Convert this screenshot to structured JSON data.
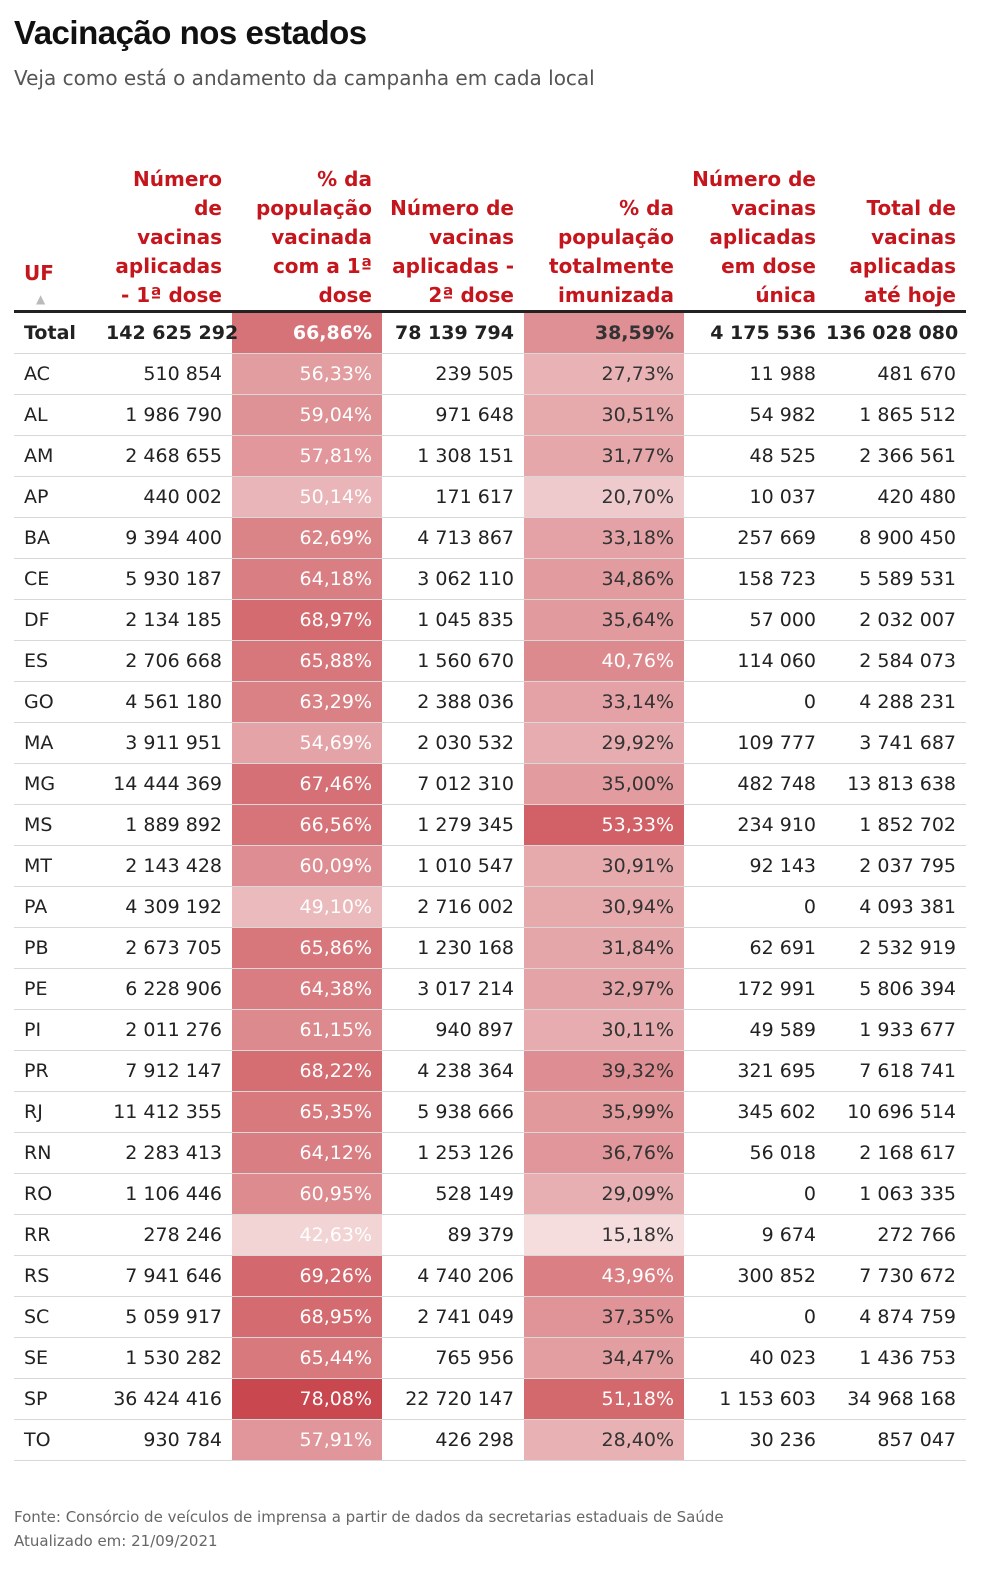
{
  "title": "Vacinação nos estados",
  "subtitle": "Veja como está o andamento da campanha em cada local",
  "colors": {
    "header_text": "#c4161c",
    "heat_base": "#c8434a"
  },
  "chart_data": {
    "type": "table",
    "columns": [
      "UF",
      "Número de vacinas aplicadas - 1ª dose",
      "% da população vacinada com a 1ª dose",
      "Número de vacinas aplicadas - 2ª dose",
      "% da população totalmente imunizada",
      "Número de vacinas aplicadas em dose única",
      "Total de vacinas aplicadas até hoje"
    ],
    "sort_indicator": "▲",
    "rows": [
      [
        "Total",
        "142 625 292",
        "66,86%",
        "78 139 794",
        "38,59%",
        "4 175 536",
        "136 028 080"
      ],
      [
        "AC",
        "510 854",
        "56,33%",
        "239 505",
        "27,73%",
        "11 988",
        "481 670"
      ],
      [
        "AL",
        "1 986 790",
        "59,04%",
        "971 648",
        "30,51%",
        "54 982",
        "1 865 512"
      ],
      [
        "AM",
        "2 468 655",
        "57,81%",
        "1 308 151",
        "31,77%",
        "48 525",
        "2 366 561"
      ],
      [
        "AP",
        "440 002",
        "50,14%",
        "171 617",
        "20,70%",
        "10 037",
        "420 480"
      ],
      [
        "BA",
        "9 394 400",
        "62,69%",
        "4 713 867",
        "33,18%",
        "257 669",
        "8 900 450"
      ],
      [
        "CE",
        "5 930 187",
        "64,18%",
        "3 062 110",
        "34,86%",
        "158 723",
        "5 589 531"
      ],
      [
        "DF",
        "2 134 185",
        "68,97%",
        "1 045 835",
        "35,64%",
        "57 000",
        "2 032 007"
      ],
      [
        "ES",
        "2 706 668",
        "65,88%",
        "1 560 670",
        "40,76%",
        "114 060",
        "2 584 073"
      ],
      [
        "GO",
        "4 561 180",
        "63,29%",
        "2 388 036",
        "33,14%",
        "0",
        "4 288 231"
      ],
      [
        "MA",
        "3 911 951",
        "54,69%",
        "2 030 532",
        "29,92%",
        "109 777",
        "3 741 687"
      ],
      [
        "MG",
        "14 444 369",
        "67,46%",
        "7 012 310",
        "35,00%",
        "482 748",
        "13 813 638"
      ],
      [
        "MS",
        "1 889 892",
        "66,56%",
        "1 279 345",
        "53,33%",
        "234 910",
        "1 852 702"
      ],
      [
        "MT",
        "2 143 428",
        "60,09%",
        "1 010 547",
        "30,91%",
        "92 143",
        "2 037 795"
      ],
      [
        "PA",
        "4 309 192",
        "49,10%",
        "2 716 002",
        "30,94%",
        "0",
        "4 093 381"
      ],
      [
        "PB",
        "2 673 705",
        "65,86%",
        "1 230 168",
        "31,84%",
        "62 691",
        "2 532 919"
      ],
      [
        "PE",
        "6 228 906",
        "64,38%",
        "3 017 214",
        "32,97%",
        "172 991",
        "5 806 394"
      ],
      [
        "PI",
        "2 011 276",
        "61,15%",
        "940 897",
        "30,11%",
        "49 589",
        "1 933 677"
      ],
      [
        "PR",
        "7 912 147",
        "68,22%",
        "4 238 364",
        "39,32%",
        "321 695",
        "7 618 741"
      ],
      [
        "RJ",
        "11 412 355",
        "65,35%",
        "5 938 666",
        "35,99%",
        "345 602",
        "10 696 514"
      ],
      [
        "RN",
        "2 283 413",
        "64,12%",
        "1 253 126",
        "36,76%",
        "56 018",
        "2 168 617"
      ],
      [
        "RO",
        "1 106 446",
        "60,95%",
        "528 149",
        "29,09%",
        "0",
        "1 063 335"
      ],
      [
        "RR",
        "278 246",
        "42,63%",
        "89 379",
        "15,18%",
        "9 674",
        "272 766"
      ],
      [
        "RS",
        "7 941 646",
        "69,26%",
        "4 740 206",
        "43,96%",
        "300 852",
        "7 730 672"
      ],
      [
        "SC",
        "5 059 917",
        "68,95%",
        "2 741 049",
        "37,35%",
        "0",
        "4 874 759"
      ],
      [
        "SE",
        "1 530 282",
        "65,44%",
        "765 956",
        "34,47%",
        "40 023",
        "1 436 753"
      ],
      [
        "SP",
        "36 424 416",
        "78,08%",
        "22 720 147",
        "51,18%",
        "1 153 603",
        "34 968 168"
      ],
      [
        "TO",
        "930 784",
        "57,91%",
        "426 298",
        "28,40%",
        "30 236",
        "857 047"
      ]
    ]
  },
  "footer": {
    "source": "Fonte: Consórcio de veículos de imprensa a partir de dados da secretarias estaduais de Saúde",
    "updated": "Atualizado em: 21/09/2021"
  }
}
